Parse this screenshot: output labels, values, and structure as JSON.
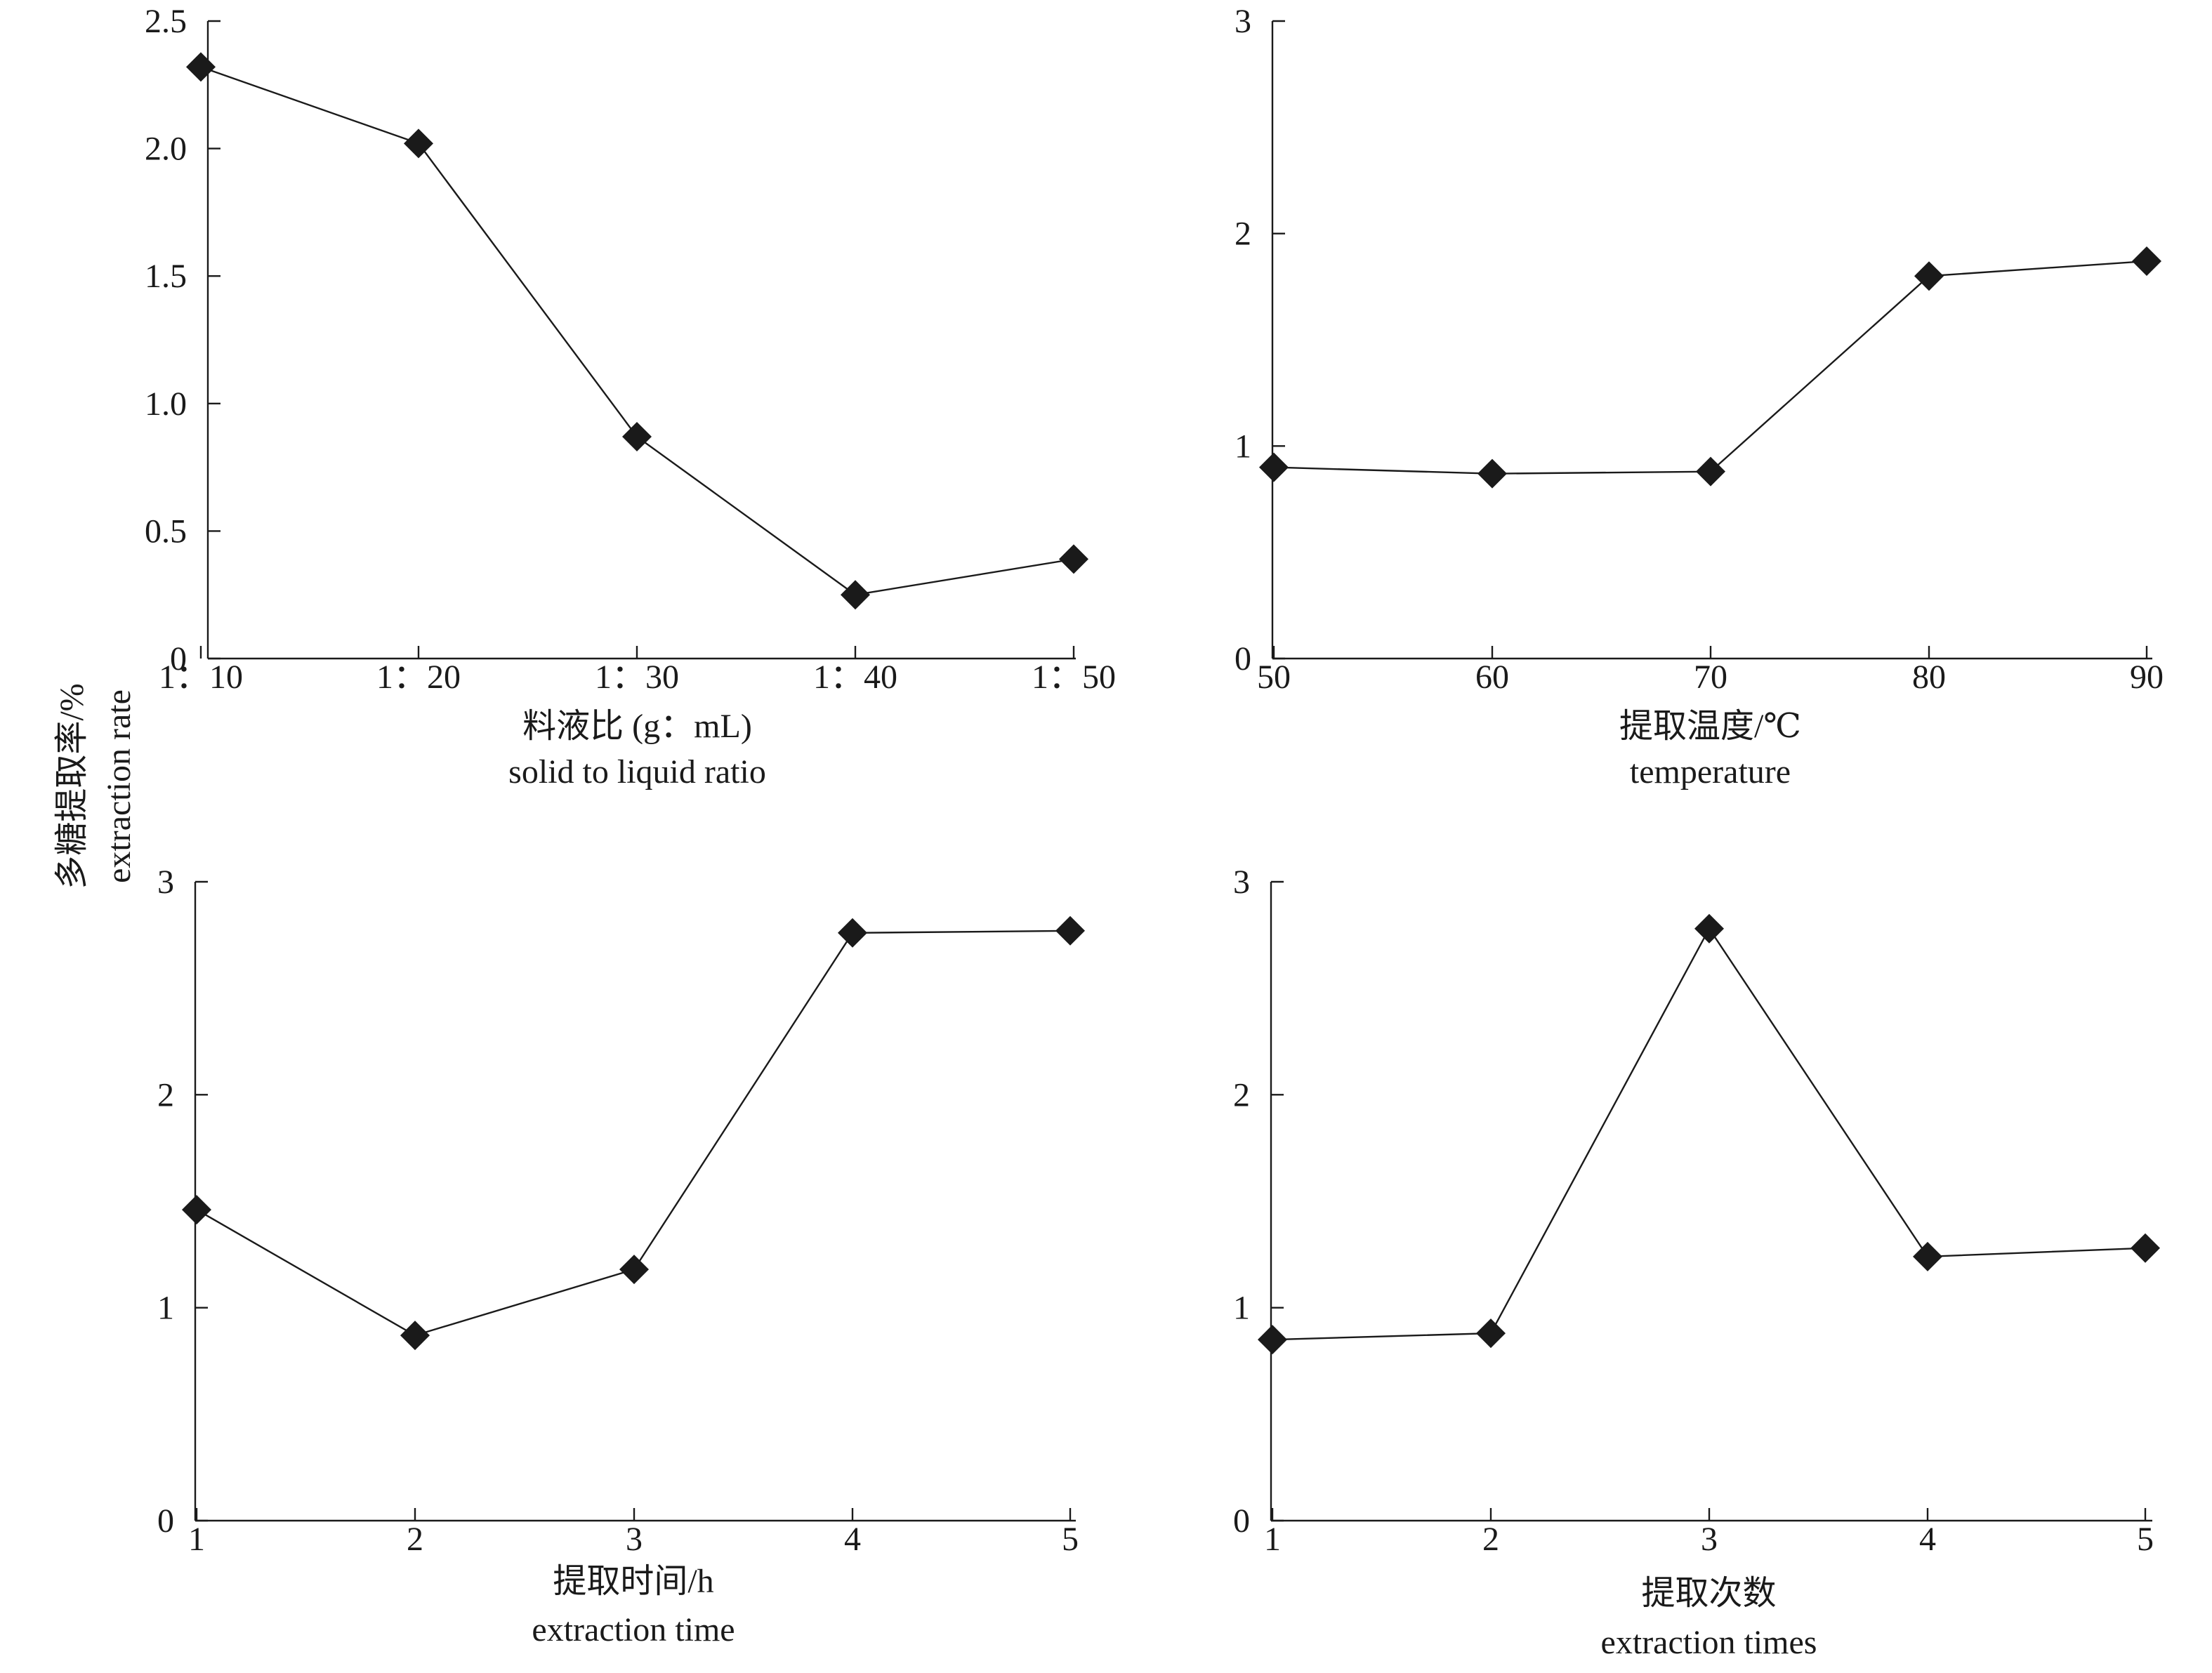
{
  "figure": {
    "ylabel_cn": "多糖提取率/%",
    "ylabel_en": "extraction rate"
  },
  "chart_data": [
    {
      "type": "line",
      "categories": [
        "1：10",
        "1：20",
        "1：30",
        "1：40",
        "1：50"
      ],
      "series": [
        {
          "values": [
            2.32,
            2.02,
            0.87,
            0.25,
            0.39
          ]
        }
      ],
      "xlabel_cn": "料液比 (g：mL)",
      "xlabel_en": "solid to liquid ratio",
      "ylim": [
        0,
        2.5
      ],
      "yticks": [
        "0",
        "0.5",
        "1.0",
        "1.5",
        "2.0",
        "2.5"
      ],
      "marker": "diamond",
      "grid": false
    },
    {
      "type": "line",
      "categories": [
        "50",
        "60",
        "70",
        "80",
        "90"
      ],
      "series": [
        {
          "values": [
            0.9,
            0.87,
            0.88,
            1.8,
            1.87
          ]
        }
      ],
      "xlabel_cn": "提取温度/℃",
      "xlabel_en": "temperature",
      "ylim": [
        0,
        3
      ],
      "yticks": [
        "0",
        "1",
        "2",
        "3"
      ],
      "marker": "diamond",
      "grid": false
    },
    {
      "type": "line",
      "categories": [
        "1",
        "2",
        "3",
        "4",
        "5"
      ],
      "series": [
        {
          "values": [
            1.46,
            0.87,
            1.18,
            2.76,
            2.77
          ]
        }
      ],
      "xlabel_cn": "提取时间/h",
      "xlabel_en": "extraction time",
      "ylim": [
        0,
        3
      ],
      "yticks": [
        "0",
        "1",
        "2",
        "3"
      ],
      "marker": "diamond",
      "grid": false
    },
    {
      "type": "line",
      "categories": [
        "1",
        "2",
        "3",
        "4",
        "5"
      ],
      "series": [
        {
          "values": [
            0.85,
            0.88,
            2.78,
            1.24,
            1.28
          ]
        }
      ],
      "xlabel_cn": "提取次数",
      "xlabel_en": "extraction times",
      "ylim": [
        0,
        3
      ],
      "yticks": [
        "0",
        "1",
        "2",
        "3"
      ],
      "marker": "diamond",
      "grid": false
    }
  ]
}
